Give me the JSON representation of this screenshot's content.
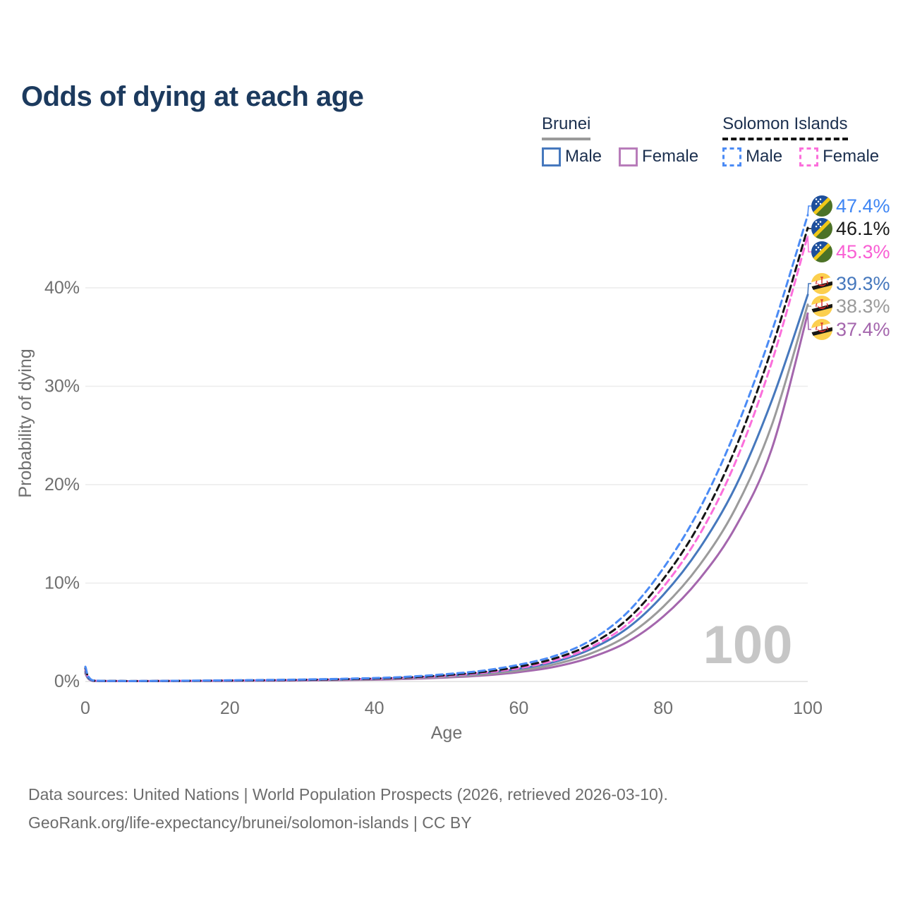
{
  "title": "Odds of dying at each age",
  "legend": {
    "groups": [
      {
        "country": "Brunei",
        "line_style": "solid",
        "underline_color": "#9a9a9a",
        "items": [
          {
            "label": "Male",
            "color": "#4678bd",
            "dashed": false
          },
          {
            "label": "Female",
            "color": "#b87cba",
            "dashed": false
          }
        ]
      },
      {
        "country": "Solomon Islands",
        "line_style": "dashed",
        "underline_color": "#151515",
        "items": [
          {
            "label": "Male",
            "color": "#4b8bf5",
            "dashed": true
          },
          {
            "label": "Female",
            "color": "#fb6fdb",
            "dashed": true
          }
        ]
      }
    ]
  },
  "chart_data": {
    "type": "line",
    "title": "Odds of dying at each age",
    "xlabel": "Age",
    "ylabel": "Probability of dying",
    "xlim": [
      0,
      100
    ],
    "ylim_percent": [
      0,
      47.5
    ],
    "grid": true,
    "legend_position": "top-right",
    "watermark": "100",
    "x_ticks": [
      0,
      20,
      40,
      60,
      80,
      100
    ],
    "y_ticks": [
      {
        "label": "0%",
        "value": 0
      },
      {
        "label": "10%",
        "value": 10
      },
      {
        "label": "20%",
        "value": 20
      },
      {
        "label": "30%",
        "value": 30
      },
      {
        "label": "40%",
        "value": 40
      }
    ],
    "ages": [
      0,
      1,
      5,
      10,
      20,
      30,
      40,
      45,
      50,
      55,
      60,
      65,
      70,
      75,
      80,
      85,
      90,
      95,
      100
    ],
    "series": [
      {
        "id": "solomon-islands-male",
        "country": "Solomon Islands",
        "sex": "Male",
        "flag": "solomon",
        "color": "#4b8bf5",
        "label_color": "#3f86f4",
        "dashed": true,
        "end_label": "47.4%",
        "values": [
          1.5,
          0.12,
          0.05,
          0.06,
          0.12,
          0.2,
          0.35,
          0.5,
          0.75,
          1.1,
          1.7,
          2.6,
          4.2,
          7.0,
          11.5,
          17.5,
          25.5,
          35.5,
          47.4
        ]
      },
      {
        "id": "solomon-islands-all",
        "country": "Solomon Islands",
        "sex": "All",
        "flag": "solomon",
        "color": "#151515",
        "label_color": "#1a1a1a",
        "dashed": true,
        "end_label": "46.1%",
        "values": [
          1.35,
          0.1,
          0.05,
          0.05,
          0.1,
          0.17,
          0.3,
          0.43,
          0.65,
          0.97,
          1.5,
          2.35,
          3.8,
          6.3,
          10.4,
          16.0,
          23.7,
          33.8,
          46.1
        ]
      },
      {
        "id": "solomon-islands-female",
        "country": "Solomon Islands",
        "sex": "Female",
        "flag": "solomon",
        "color": "#fb6fdb",
        "label_color": "#f95fd4",
        "dashed": true,
        "end_label": "45.3%",
        "values": [
          1.2,
          0.09,
          0.04,
          0.05,
          0.09,
          0.15,
          0.27,
          0.4,
          0.58,
          0.88,
          1.35,
          2.15,
          3.5,
          5.8,
          9.6,
          14.9,
          22.3,
          32.4,
          45.3
        ]
      },
      {
        "id": "brunei-male",
        "country": "Brunei",
        "sex": "Male",
        "flag": "brunei",
        "color": "#4678bd",
        "label_color": "#4678bd",
        "dashed": false,
        "end_label": "39.3%",
        "values": [
          1.0,
          0.08,
          0.04,
          0.04,
          0.09,
          0.15,
          0.27,
          0.4,
          0.57,
          0.85,
          1.3,
          2.0,
          3.3,
          5.4,
          8.8,
          13.5,
          19.8,
          28.5,
          39.3
        ]
      },
      {
        "id": "brunei-all",
        "country": "Brunei",
        "sex": "All",
        "flag": "brunei",
        "color": "#9b9b9b",
        "label_color": "#9b9b9b",
        "dashed": false,
        "end_label": "38.3%",
        "values": [
          0.9,
          0.07,
          0.03,
          0.04,
          0.08,
          0.13,
          0.22,
          0.33,
          0.48,
          0.72,
          1.1,
          1.75,
          2.85,
          4.65,
          7.6,
          11.8,
          17.6,
          26.0,
          38.3
        ]
      },
      {
        "id": "brunei-female",
        "country": "Brunei",
        "sex": "Female",
        "flag": "brunei",
        "color": "#a466ad",
        "label_color": "#a466ad",
        "dashed": false,
        "end_label": "37.4%",
        "values": [
          0.8,
          0.06,
          0.03,
          0.03,
          0.06,
          0.1,
          0.18,
          0.27,
          0.4,
          0.61,
          0.95,
          1.5,
          2.45,
          4.0,
          6.6,
          10.4,
          15.7,
          23.6,
          37.4
        ]
      }
    ],
    "flag_colors": {
      "solomon": {
        "blue": "#1d4f9c",
        "green": "#4c7227",
        "yellow": "#f0c818",
        "star": "#ffffff"
      },
      "brunei": {
        "yellow": "#fccf4e",
        "white": "#ffffff",
        "black": "#161616",
        "red": "#d62828"
      }
    },
    "axis_color": "#6f6f6f",
    "grid_color": "#ececec",
    "watermark_color": "#c6c6c6"
  },
  "footer": {
    "line1": "Data sources: United Nations | World Population Prospects (2026, retrieved 2026-03-10).",
    "line2": "GeoRank.org/life-expectancy/brunei/solomon-islands | CC BY"
  }
}
